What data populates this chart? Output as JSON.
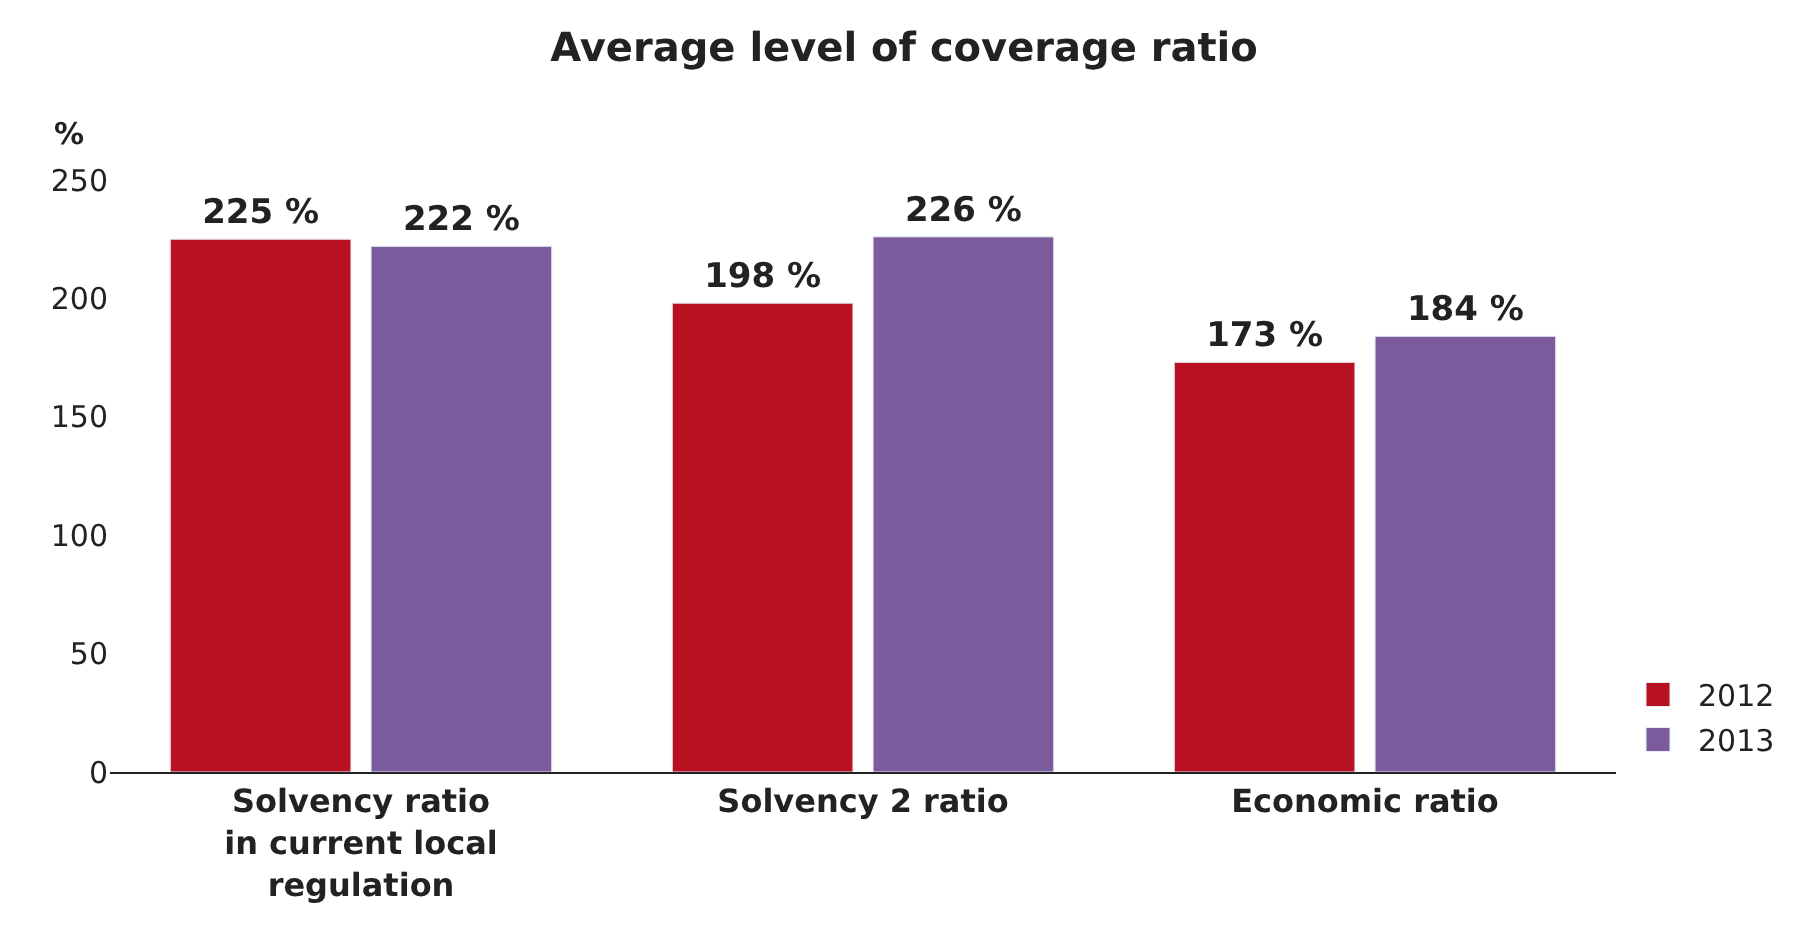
{
  "chart_data": {
    "type": "bar",
    "title": "Average level of coverage ratio",
    "ylabel": "%",
    "categories": [
      "Solvency ratio in current local regulation",
      "Solvency 2 ratio",
      "Economic ratio"
    ],
    "series": [
      {
        "name": "2012",
        "color": "#b81121",
        "values": [
          225,
          198,
          173
        ],
        "value_labels": [
          "225 %",
          "198 %",
          "173 %"
        ]
      },
      {
        "name": "2013",
        "color": "#7b5b9b",
        "values": [
          222,
          226,
          184
        ],
        "value_labels": [
          "222 %",
          "226 %",
          "184 %"
        ]
      }
    ],
    "ylim": [
      0,
      250
    ],
    "yticks": [
      0,
      50,
      100,
      150,
      200,
      250
    ],
    "legend": "bottom right"
  }
}
